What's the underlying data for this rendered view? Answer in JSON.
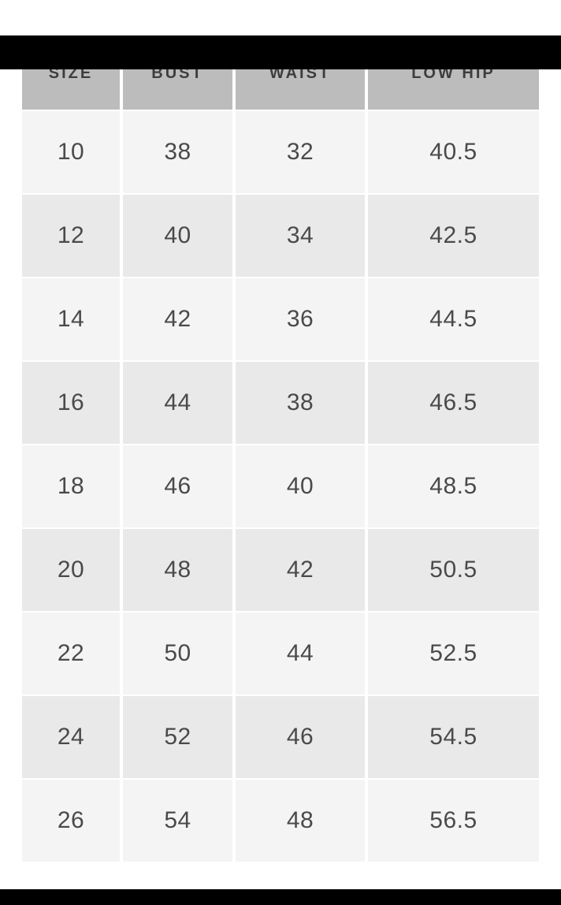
{
  "chart_data": {
    "type": "table",
    "columns": [
      "SIZE",
      "BUST",
      "WAIST",
      "LOW HIP"
    ],
    "rows": [
      [
        "10",
        "38",
        "32",
        "40.5"
      ],
      [
        "12",
        "40",
        "34",
        "42.5"
      ],
      [
        "14",
        "42",
        "36",
        "44.5"
      ],
      [
        "16",
        "44",
        "38",
        "46.5"
      ],
      [
        "18",
        "46",
        "40",
        "48.5"
      ],
      [
        "20",
        "48",
        "42",
        "50.5"
      ],
      [
        "22",
        "50",
        "44",
        "52.5"
      ],
      [
        "24",
        "52",
        "46",
        "54.5"
      ],
      [
        "26",
        "54",
        "48",
        "56.5"
      ]
    ]
  },
  "colors": {
    "letterbox": "#000000",
    "background": "#ffffff",
    "header_bg": "#bcbcbc",
    "header_text": "#3d3d3d",
    "row_light": "#f4f4f4",
    "row_dark": "#e9e9e9",
    "cell_text": "#4a4a4a"
  }
}
